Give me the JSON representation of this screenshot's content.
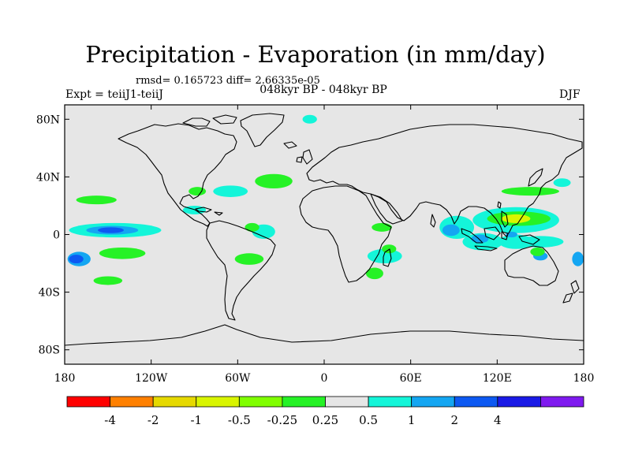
{
  "title": "Precipitation - Evaporation (in mm/day)",
  "stats": "rmsd= 0.165723  diff= 2.66335e-05",
  "period": "048kyr BP - 048kyr BP",
  "experiment": "Expt = teiiJ1-teiiJ",
  "season": "DJF",
  "map": {
    "projection": "cylindrical-equidistant",
    "lon_range": [
      -180,
      180
    ],
    "lat_range": [
      -90,
      90
    ],
    "ocean_fill": "#e6e6e6",
    "coastline_color": "#000000",
    "x_ticks": [
      {
        "lon": -180,
        "label": "180"
      },
      {
        "lon": -120,
        "label": "120W"
      },
      {
        "lon": -60,
        "label": "60W"
      },
      {
        "lon": 0,
        "label": "0"
      },
      {
        "lon": 60,
        "label": "60E"
      },
      {
        "lon": 120,
        "label": "120E"
      },
      {
        "lon": 180,
        "label": "180"
      }
    ],
    "y_ticks": [
      {
        "lat": 80,
        "label": "80N"
      },
      {
        "lat": 40,
        "label": "40N"
      },
      {
        "lat": 0,
        "label": "0"
      },
      {
        "lat": -40,
        "label": "40S"
      },
      {
        "lat": -80,
        "label": "80S"
      }
    ]
  },
  "colorbar": {
    "colors": [
      "#ff0000",
      "#ff8000",
      "#e6d900",
      "#d9f500",
      "#80ff00",
      "#26f226",
      "#e6e6e6",
      "#14f5d9",
      "#14a6f2",
      "#0d59f2",
      "#1a1ae6",
      "#7f1aef"
    ],
    "labels": [
      "-4",
      "-2",
      "-1",
      "-0.5",
      "-0.25",
      "0.25",
      "0.5",
      "1",
      "2",
      "4"
    ]
  },
  "anomalies": [
    {
      "lon": -158,
      "lat": 24,
      "rx": 14,
      "ry": 3,
      "color": "#26f226"
    },
    {
      "lon": -145,
      "lat": 3,
      "rx": 32,
      "ry": 5,
      "color": "#14f5d9"
    },
    {
      "lon": -147,
      "lat": 3,
      "rx": 18,
      "ry": 3,
      "color": "#14a6f2"
    },
    {
      "lon": -148,
      "lat": 3,
      "rx": 9,
      "ry": 2,
      "color": "#0d59f2"
    },
    {
      "lon": -170,
      "lat": -17,
      "rx": 8,
      "ry": 5,
      "color": "#14a6f2"
    },
    {
      "lon": -172,
      "lat": -17,
      "rx": 5,
      "ry": 3,
      "color": "#0d59f2"
    },
    {
      "lon": -140,
      "lat": -13,
      "rx": 16,
      "ry": 4,
      "color": "#26f226"
    },
    {
      "lon": -150,
      "lat": -32,
      "rx": 10,
      "ry": 3,
      "color": "#26f226"
    },
    {
      "lon": -88,
      "lat": 30,
      "rx": 6,
      "ry": 3,
      "color": "#26f226"
    },
    {
      "lon": -90,
      "lat": 17,
      "rx": 8,
      "ry": 3,
      "color": "#14f5d9"
    },
    {
      "lon": -65,
      "lat": 30,
      "rx": 12,
      "ry": 4,
      "color": "#14f5d9"
    },
    {
      "lon": -35,
      "lat": 37,
      "rx": 13,
      "ry": 5,
      "color": "#26f226"
    },
    {
      "lon": -42,
      "lat": 2,
      "rx": 8,
      "ry": 5,
      "color": "#14f5d9"
    },
    {
      "lon": -50,
      "lat": 5,
      "rx": 5,
      "ry": 3,
      "color": "#26f226"
    },
    {
      "lon": -52,
      "lat": -17,
      "rx": 10,
      "ry": 4,
      "color": "#26f226"
    },
    {
      "lon": 40,
      "lat": 5,
      "rx": 7,
      "ry": 3,
      "color": "#26f226"
    },
    {
      "lon": 42,
      "lat": -15,
      "rx": 12,
      "ry": 5,
      "color": "#14f5d9"
    },
    {
      "lon": 45,
      "lat": -10,
      "rx": 5,
      "ry": 3,
      "color": "#26f226"
    },
    {
      "lon": 35,
      "lat": -27,
      "rx": 6,
      "ry": 4,
      "color": "#26f226"
    },
    {
      "lon": -10,
      "lat": 80,
      "rx": 5,
      "ry": 3,
      "color": "#14f5d9"
    },
    {
      "lon": 92,
      "lat": 5,
      "rx": 12,
      "ry": 8,
      "color": "#14f5d9"
    },
    {
      "lon": 88,
      "lat": 3,
      "rx": 6,
      "ry": 4,
      "color": "#14a6f2"
    },
    {
      "lon": 110,
      "lat": -5,
      "rx": 14,
      "ry": 6,
      "color": "#14f5d9"
    },
    {
      "lon": 108,
      "lat": -3,
      "rx": 6,
      "ry": 3,
      "color": "#14a6f2"
    },
    {
      "lon": 133,
      "lat": 10,
      "rx": 30,
      "ry": 9,
      "color": "#14f5d9"
    },
    {
      "lon": 135,
      "lat": 11,
      "rx": 22,
      "ry": 5,
      "color": "#26f226"
    },
    {
      "lon": 133,
      "lat": 11,
      "rx": 10,
      "ry": 3,
      "color": "#d9f500"
    },
    {
      "lon": 133,
      "lat": -5,
      "rx": 12,
      "ry": 5,
      "color": "#14f5d9"
    },
    {
      "lon": 130,
      "lat": 0,
      "rx": 4,
      "ry": 2,
      "color": "#14a6f2"
    },
    {
      "lon": 150,
      "lat": -5,
      "rx": 16,
      "ry": 4,
      "color": "#14f5d9"
    },
    {
      "lon": 143,
      "lat": 30,
      "rx": 20,
      "ry": 3,
      "color": "#26f226"
    },
    {
      "lon": 165,
      "lat": 36,
      "rx": 6,
      "ry": 3,
      "color": "#14f5d9"
    },
    {
      "lon": 176,
      "lat": -17,
      "rx": 4,
      "ry": 5,
      "color": "#14a6f2"
    },
    {
      "lon": 150,
      "lat": -15,
      "rx": 5,
      "ry": 3,
      "color": "#14a6f2"
    },
    {
      "lon": 148,
      "lat": -12,
      "rx": 5,
      "ry": 3,
      "color": "#26f226"
    }
  ]
}
